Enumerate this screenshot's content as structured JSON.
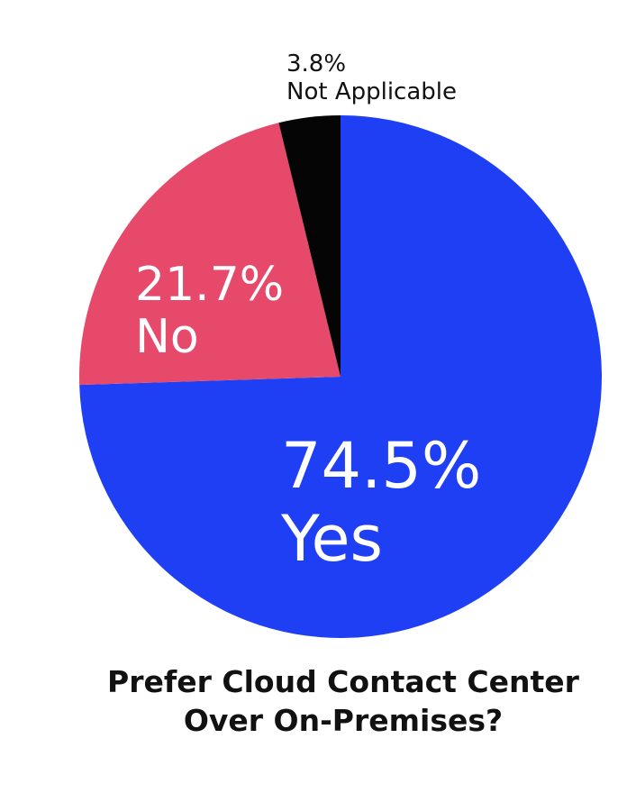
{
  "chart_data": {
    "type": "pie",
    "title": [
      "Prefer Cloud Contact Center",
      "Over On-Premises?"
    ],
    "slices": [
      {
        "label": "Yes",
        "value": 74.5,
        "display": "74.5%",
        "color": "#1f3ff5"
      },
      {
        "label": "No",
        "value": 21.7,
        "display": "21.7%",
        "color": "#e6496a"
      },
      {
        "label": "Not Applicable",
        "value": 3.8,
        "display": "3.8%",
        "color": "#050505"
      }
    ],
    "start_angle": "12 o'clock",
    "direction": "clockwise",
    "legend": "none"
  }
}
